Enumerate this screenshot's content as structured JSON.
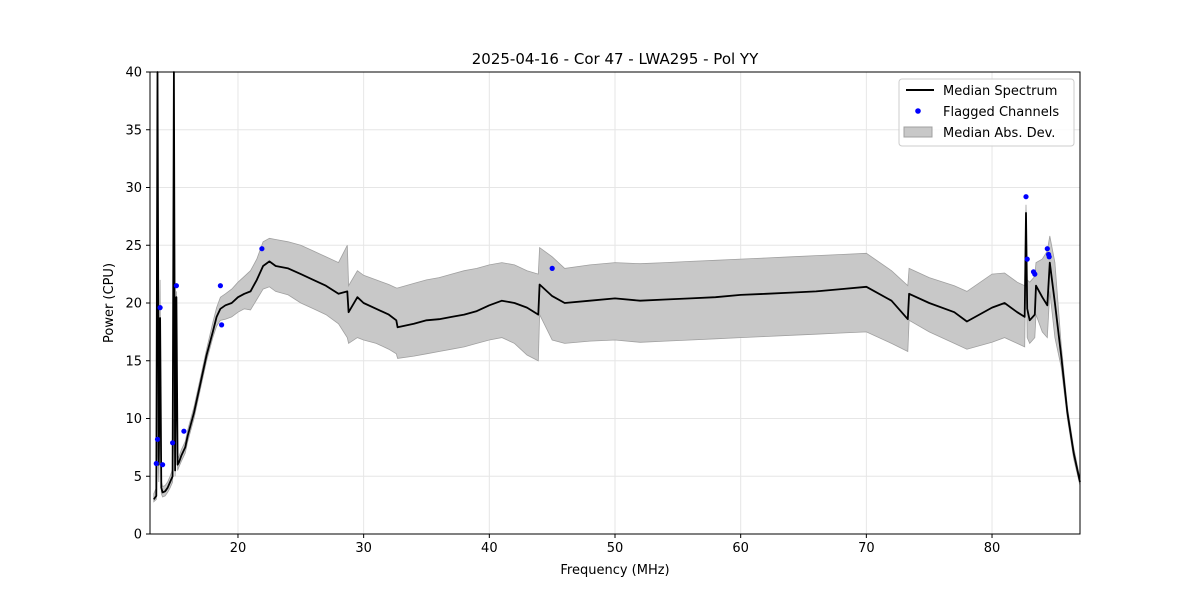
{
  "chart_data": {
    "type": "line",
    "title": "2025-04-16 - Cor 47 - LWA295 - Pol YY",
    "xlabel": "Frequency (MHz)",
    "ylabel": "Power (CPU)",
    "xlim": [
      13.0,
      87.0
    ],
    "ylim": [
      0,
      40
    ],
    "xticks": [
      20,
      30,
      40,
      50,
      60,
      70,
      80
    ],
    "yticks": [
      0,
      5,
      10,
      15,
      20,
      25,
      30,
      35,
      40
    ],
    "grid": true,
    "legend_position": "top-right",
    "legend": [
      "Median Spectrum",
      "Flagged Channels",
      "Median Abs. Dev."
    ],
    "colors": {
      "median": "#000000",
      "flagged": "#0000ff",
      "band_fill": "#c8c8c8",
      "band_edge": "#a0a0a0",
      "grid": "#e6e6e6"
    },
    "series": [
      {
        "name": "Median Spectrum",
        "x": [
          13.3,
          13.5,
          13.6,
          13.7,
          13.8,
          13.9,
          14.0,
          14.2,
          14.4,
          14.6,
          14.8,
          14.9,
          15.0,
          15.1,
          15.2,
          15.3,
          15.5,
          15.8,
          16.0,
          16.5,
          17.0,
          17.5,
          18.0,
          18.3,
          18.6,
          19.0,
          19.5,
          20.0,
          20.5,
          21.0,
          21.5,
          22.0,
          22.5,
          23.0,
          24.0,
          25.0,
          26.0,
          27.0,
          28.0,
          28.7,
          28.8,
          29.5,
          30.0,
          31.0,
          32.0,
          32.6,
          32.7,
          34.0,
          35.0,
          36.0,
          37.0,
          38.0,
          39.0,
          40.0,
          41.0,
          42.0,
          43.0,
          43.9,
          44.0,
          45.0,
          46.0,
          48.0,
          50.0,
          52.0,
          54.0,
          56.0,
          58.0,
          60.0,
          62.0,
          64.0,
          66.0,
          68.0,
          70.0,
          72.0,
          73.3,
          73.4,
          75.0,
          77.0,
          78.0,
          80.0,
          81.0,
          82.0,
          82.6,
          82.7,
          82.8,
          83.0,
          83.4,
          83.5,
          84.0,
          84.4,
          84.6,
          85.0,
          85.5,
          86.0,
          86.5,
          87.0
        ],
        "y": [
          3.0,
          3.3,
          40.0,
          6.0,
          18.7,
          4.0,
          3.6,
          3.7,
          4.0,
          4.5,
          5.0,
          40.0,
          5.5,
          20.5,
          6.0,
          6.2,
          6.8,
          7.5,
          8.5,
          10.5,
          13.0,
          15.5,
          17.5,
          18.8,
          19.5,
          19.8,
          20.0,
          20.5,
          20.8,
          21.0,
          22.0,
          23.2,
          23.6,
          23.2,
          23.0,
          22.5,
          22.0,
          21.5,
          20.8,
          21.0,
          19.2,
          20.5,
          20.0,
          19.5,
          19.0,
          18.5,
          17.9,
          18.2,
          18.5,
          18.6,
          18.8,
          19.0,
          19.3,
          19.8,
          20.2,
          20.0,
          19.6,
          19.0,
          21.6,
          20.6,
          20.0,
          20.2,
          20.4,
          20.2,
          20.3,
          20.4,
          20.5,
          20.7,
          20.8,
          20.9,
          21.0,
          21.2,
          21.4,
          20.2,
          18.6,
          20.8,
          20.0,
          19.2,
          18.4,
          19.6,
          20.0,
          19.2,
          18.8,
          27.8,
          19.5,
          18.5,
          19.0,
          21.5,
          20.5,
          19.8,
          23.5,
          20.0,
          15.5,
          10.5,
          7.0,
          4.5
        ],
        "band_upper": [
          3.5,
          4.0,
          30.0,
          8.0,
          22.0,
          4.6,
          4.1,
          4.2,
          4.5,
          5.0,
          5.6,
          35.0,
          6.0,
          21.0,
          6.5,
          6.7,
          7.3,
          8.0,
          9.0,
          11.0,
          13.5,
          16.0,
          18.3,
          19.6,
          20.5,
          20.8,
          21.2,
          21.8,
          22.3,
          22.8,
          23.8,
          25.3,
          25.6,
          25.5,
          25.3,
          25.0,
          24.5,
          24.0,
          23.5,
          25.0,
          21.5,
          22.8,
          22.4,
          22.0,
          21.6,
          21.3,
          21.3,
          21.7,
          22.0,
          22.2,
          22.5,
          22.8,
          23.0,
          23.3,
          23.5,
          23.3,
          22.8,
          22.5,
          24.8,
          24.0,
          23.0,
          23.3,
          23.5,
          23.4,
          23.5,
          23.6,
          23.7,
          23.8,
          23.9,
          24.0,
          24.1,
          24.2,
          24.3,
          22.8,
          21.5,
          23.0,
          22.2,
          21.5,
          21.0,
          22.5,
          22.6,
          21.8,
          21.5,
          28.5,
          22.0,
          21.8,
          22.3,
          23.5,
          23.8,
          24.5,
          25.8,
          23.5,
          16.5,
          11.0,
          7.5,
          4.8
        ],
        "band_lower": [
          2.8,
          3.0,
          8.0,
          4.5,
          12.0,
          3.5,
          3.2,
          3.3,
          3.6,
          4.0,
          4.5,
          10.0,
          5.0,
          15.0,
          5.5,
          5.8,
          6.3,
          7.0,
          8.0,
          10.0,
          12.5,
          15.0,
          17.0,
          18.0,
          18.5,
          18.6,
          18.8,
          19.2,
          19.5,
          19.4,
          20.3,
          21.2,
          21.4,
          21.0,
          20.7,
          20.0,
          19.5,
          19.0,
          18.2,
          17.0,
          16.5,
          17.0,
          16.8,
          16.5,
          16.0,
          15.6,
          15.2,
          15.4,
          15.6,
          15.8,
          16.0,
          16.2,
          16.5,
          16.8,
          17.0,
          16.5,
          15.5,
          15.0,
          19.0,
          16.8,
          16.5,
          16.7,
          16.8,
          16.6,
          16.7,
          16.8,
          16.9,
          17.0,
          17.1,
          17.2,
          17.3,
          17.4,
          17.5,
          16.5,
          15.8,
          18.5,
          17.5,
          16.5,
          16.0,
          16.6,
          17.0,
          16.5,
          16.2,
          25.0,
          17.0,
          16.5,
          17.0,
          19.0,
          17.5,
          17.0,
          21.0,
          17.0,
          14.5,
          10.0,
          6.5,
          4.2
        ]
      },
      {
        "name": "Flagged Channels",
        "type": "scatter",
        "x": [
          13.5,
          13.6,
          13.8,
          14.0,
          14.8,
          15.1,
          15.7,
          18.6,
          18.7,
          21.9,
          45.0,
          82.7,
          82.8,
          83.3,
          83.4,
          84.4,
          84.5,
          84.55
        ],
        "y": [
          6.1,
          8.2,
          19.6,
          6.0,
          7.9,
          21.5,
          8.9,
          21.5,
          18.1,
          24.7,
          23.0,
          29.2,
          23.8,
          22.7,
          22.5,
          24.7,
          24.2,
          24.0
        ]
      }
    ]
  }
}
